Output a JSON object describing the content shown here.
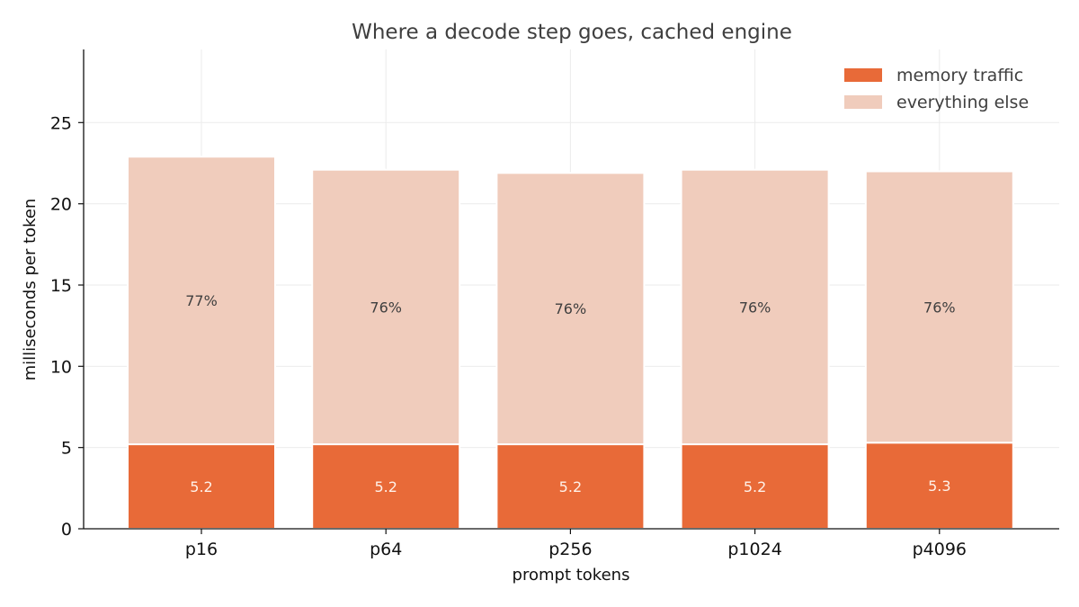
{
  "chart_data": {
    "type": "bar",
    "stacked": true,
    "title": "Where a decode step goes, cached engine",
    "xlabel": "prompt tokens",
    "ylabel": "milliseconds per token",
    "categories": [
      "p16",
      "p64",
      "p256",
      "p1024",
      "p4096"
    ],
    "series": [
      {
        "name": "memory traffic",
        "color": "#e86a38",
        "values": [
          5.2,
          5.2,
          5.2,
          5.2,
          5.3
        ],
        "labels": [
          "5.2",
          "5.2",
          "5.2",
          "5.2",
          "5.3"
        ]
      },
      {
        "name": "everything else",
        "color": "#f0ccbc",
        "values": [
          17.7,
          16.9,
          16.7,
          16.9,
          16.7
        ],
        "labels": [
          "77%",
          "76%",
          "76%",
          "76%",
          "76%"
        ]
      }
    ],
    "ylim": [
      0,
      29.5
    ],
    "yticks": [
      0,
      5,
      10,
      15,
      20,
      25
    ],
    "grid": true,
    "legend_position": "top-right"
  }
}
